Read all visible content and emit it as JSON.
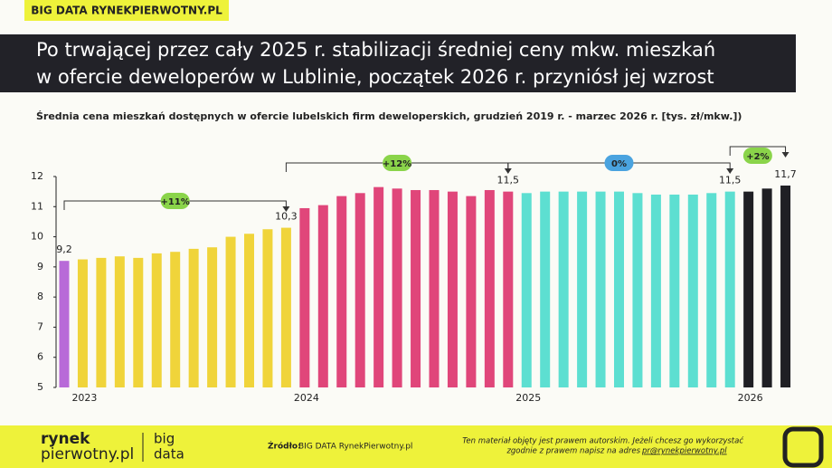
{
  "header": {
    "tag": "BIG DATA RYNEKPIERWOTNY.PL"
  },
  "chart_data": {
    "type": "bar",
    "title": [
      "Po trwającej przez cały 2025 r. stabilizacji średniej ceny mkw. mieszkań",
      "w ofercie deweloperów w Lublinie, początek 2026 r. przyniósł jej wzrost"
    ],
    "subtitle": "Średnia cena  mieszkań dostępnych w ofercie lubelskich firm deweloperskich, grudzień 2019 r. - marzec 2026 r. [tys. zł/mkw.])",
    "categories": [
      null,
      "2023",
      null,
      null,
      null,
      null,
      null,
      null,
      null,
      null,
      null,
      null,
      null,
      "2024",
      null,
      null,
      null,
      null,
      null,
      null,
      null,
      null,
      null,
      null,
      null,
      "2025",
      null,
      null,
      null,
      null,
      null,
      null,
      null,
      null,
      null,
      null,
      null,
      "2026",
      null,
      null
    ],
    "values": [
      9.2,
      9.25,
      9.3,
      9.35,
      9.3,
      9.45,
      9.5,
      9.6,
      9.65,
      10.0,
      10.1,
      10.25,
      10.3,
      10.95,
      11.05,
      11.35,
      11.45,
      11.65,
      11.6,
      11.55,
      11.55,
      11.5,
      11.35,
      11.55,
      11.5,
      11.45,
      11.5,
      11.5,
      11.5,
      11.5,
      11.5,
      11.45,
      11.4,
      11.4,
      11.4,
      11.45,
      11.5,
      11.5,
      11.6,
      11.7
    ],
    "value_labels": [
      "9,2",
      null,
      null,
      null,
      null,
      null,
      null,
      null,
      null,
      null,
      null,
      null,
      "10,3",
      null,
      null,
      null,
      null,
      null,
      null,
      null,
      null,
      null,
      null,
      null,
      "11,5",
      null,
      null,
      null,
      null,
      null,
      null,
      null,
      null,
      null,
      null,
      null,
      "11,5",
      null,
      null,
      "11,7"
    ],
    "colors": [
      "#b86ad8",
      "#f0d43a",
      "#f0d43a",
      "#f0d43a",
      "#f0d43a",
      "#f0d43a",
      "#f0d43a",
      "#f0d43a",
      "#f0d43a",
      "#f0d43a",
      "#f0d43a",
      "#f0d43a",
      "#f0d43a",
      "#e0467a",
      "#e0467a",
      "#e0467a",
      "#e0467a",
      "#e0467a",
      "#e0467a",
      "#e0467a",
      "#e0467a",
      "#e0467a",
      "#e0467a",
      "#e0467a",
      "#e0467a",
      "#5ddfd1",
      "#5ddfd1",
      "#5ddfd1",
      "#5ddfd1",
      "#5ddfd1",
      "#5ddfd1",
      "#5ddfd1",
      "#5ddfd1",
      "#5ddfd1",
      "#5ddfd1",
      "#5ddfd1",
      "#5ddfd1",
      "#1f1f24",
      "#1f1f24",
      "#1f1f24"
    ],
    "annotations": [
      "+11%",
      "+12%",
      "0%",
      "+2%"
    ],
    "ylim": [
      5,
      12
    ],
    "yticks": [
      5,
      6,
      7,
      8,
      9,
      10,
      11,
      12
    ]
  },
  "footer": {
    "logo_left": [
      "rynek",
      "pierwotny.pl"
    ],
    "logo_right": [
      "big",
      "data"
    ],
    "source_label": "Źródło:",
    "source": "BIG DATA RynekPierwotny.pl",
    "copyright": [
      "Ten materiał objęty jest prawem autorskim. Jeżeli chcesz go wykorzystać",
      "zgodnie z prawem napisz na adres"
    ],
    "email": "pr@rynekpierwotny.pl"
  }
}
